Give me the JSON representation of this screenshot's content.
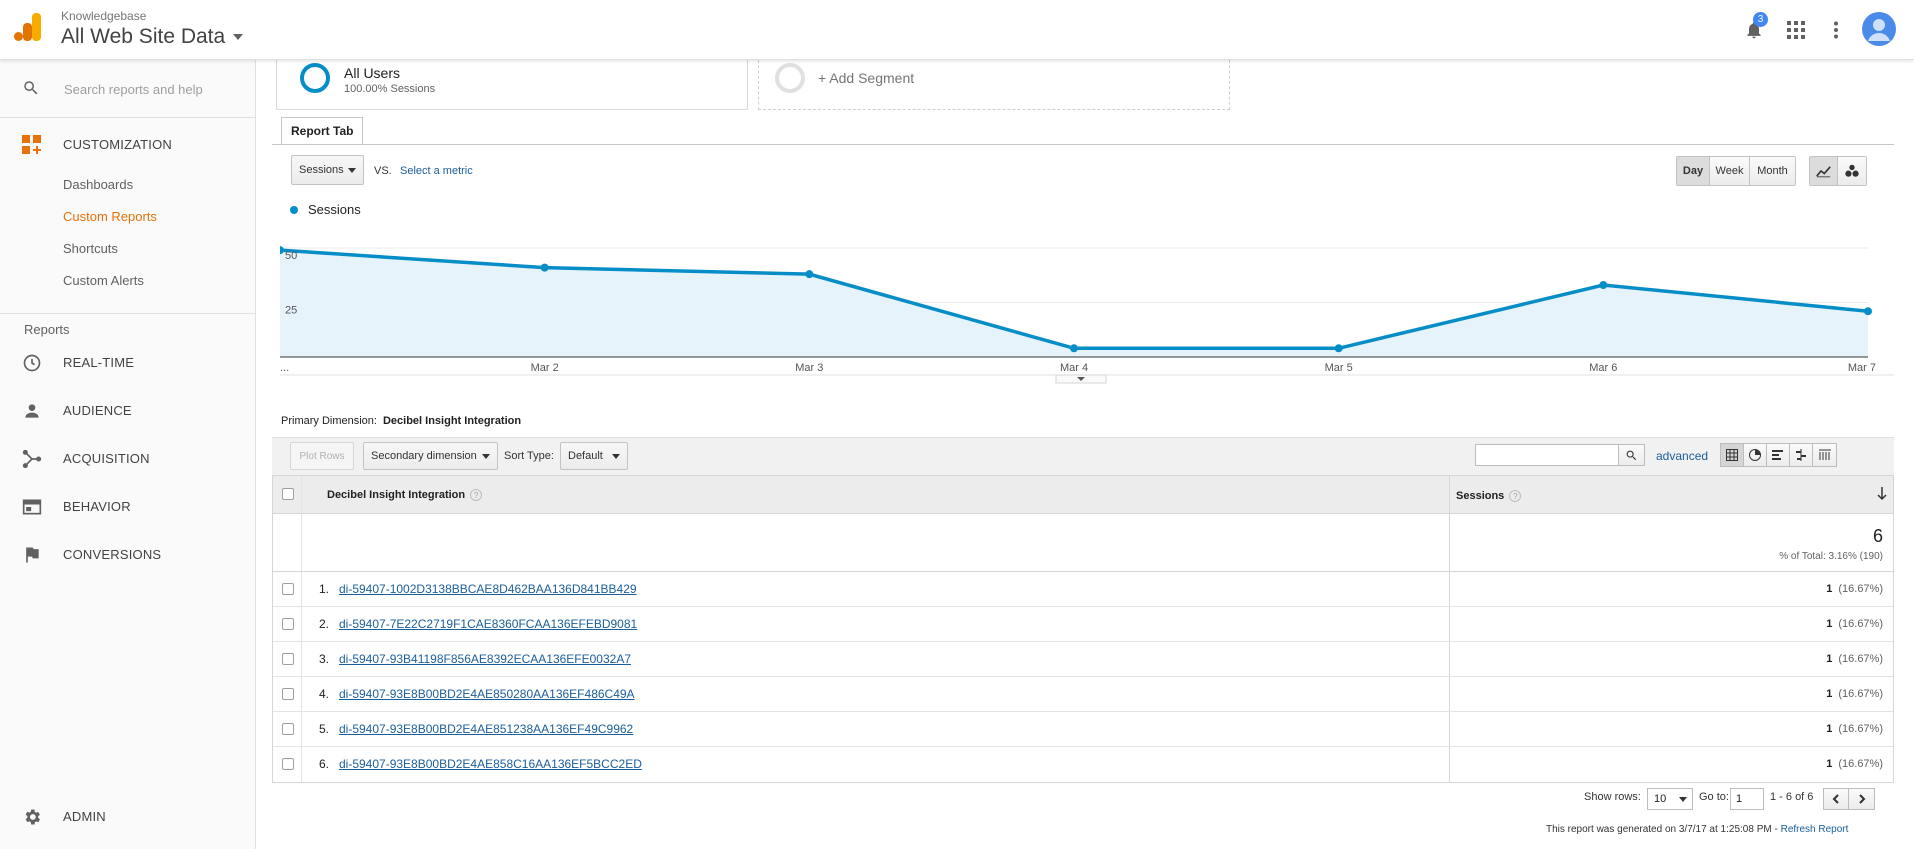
{
  "header": {
    "property_account": "Knowledgebase",
    "property_view": "All Web Site Data",
    "notification_count": "3",
    "icons": [
      "analytics-logo",
      "bell-icon",
      "apps-grid-icon",
      "more-vert-icon",
      "account-avatar"
    ]
  },
  "sidebar": {
    "search_placeholder": "Search reports and help",
    "customization_label": "CUSTOMIZATION",
    "customization_items": [
      "Dashboards",
      "Custom Reports",
      "Shortcuts",
      "Custom Alerts"
    ],
    "active_item": "Custom Reports",
    "reports_heading": "Reports",
    "reports_items": [
      "REAL-TIME",
      "AUDIENCE",
      "ACQUISITION",
      "BEHAVIOR",
      "CONVERSIONS"
    ],
    "admin_label": "ADMIN"
  },
  "segments": {
    "all_users_title": "All Users",
    "all_users_sub": "100.00% Sessions",
    "add_segment": "+ Add Segment"
  },
  "report_tab": "Report Tab",
  "controls": {
    "metric_select": "Sessions",
    "vs_label": "VS.",
    "select_metric_link": "Select a metric",
    "period_buttons": [
      "Day",
      "Week",
      "Month"
    ],
    "period_active": "Day"
  },
  "chart_data": {
    "type": "area",
    "legend": "Sessions",
    "x": [
      "...",
      "Mar 2",
      "Mar 3",
      "Mar 4",
      "Mar 5",
      "Mar 6",
      "Mar 7"
    ],
    "series": [
      {
        "name": "Sessions",
        "values": [
          49,
          41,
          38,
          4,
          4,
          33,
          21
        ]
      }
    ],
    "y_ticks": [
      "50",
      "25"
    ],
    "ylim": [
      0,
      50
    ],
    "grid": true,
    "color": "#058dc7",
    "fill": "#e6f3fa"
  },
  "dimension": {
    "label": "Primary Dimension:",
    "value": "Decibel Insight Integration"
  },
  "table_toolbar": {
    "plot_rows": "Plot Rows",
    "secondary_dimension": "Secondary dimension",
    "sort_type_label": "Sort Type:",
    "sort_type_value": "Default",
    "advanced_link": "advanced"
  },
  "table": {
    "col_dimension": "Decibel Insight Integration",
    "col_metric": "Sessions",
    "help_glyph": "?",
    "total_value": "6",
    "total_pct": "% of Total: 3.16% (190)",
    "rows": [
      {
        "num": "1.",
        "name": "di-59407-1002D3138BBCAE8D462BAA136D841BB429",
        "value": "1",
        "pct": "(16.67%)"
      },
      {
        "num": "2.",
        "name": "di-59407-7E22C2719F1CAE8360FCAA136EFEBD9081",
        "value": "1",
        "pct": "(16.67%)"
      },
      {
        "num": "3.",
        "name": "di-59407-93B41198F856AE8392ECAA136EFE0032A7",
        "value": "1",
        "pct": "(16.67%)"
      },
      {
        "num": "4.",
        "name": "di-59407-93E8B00BD2E4AE850280AA136EF486C49A",
        "value": "1",
        "pct": "(16.67%)"
      },
      {
        "num": "5.",
        "name": "di-59407-93E8B00BD2E4AE851238AA136EF49C9962",
        "value": "1",
        "pct": "(16.67%)"
      },
      {
        "num": "6.",
        "name": "di-59407-93E8B00BD2E4AE858C16AA136EF5BCC2ED",
        "value": "1",
        "pct": "(16.67%)"
      }
    ]
  },
  "pager": {
    "show_rows_label": "Show rows:",
    "show_rows_value": "10",
    "goto_label": "Go to:",
    "goto_value": "1",
    "range": "1 - 6 of 6"
  },
  "footer": {
    "generated": "This report was generated on 3/7/17 at 1:25:08 PM - ",
    "refresh_link": "Refresh Report"
  }
}
